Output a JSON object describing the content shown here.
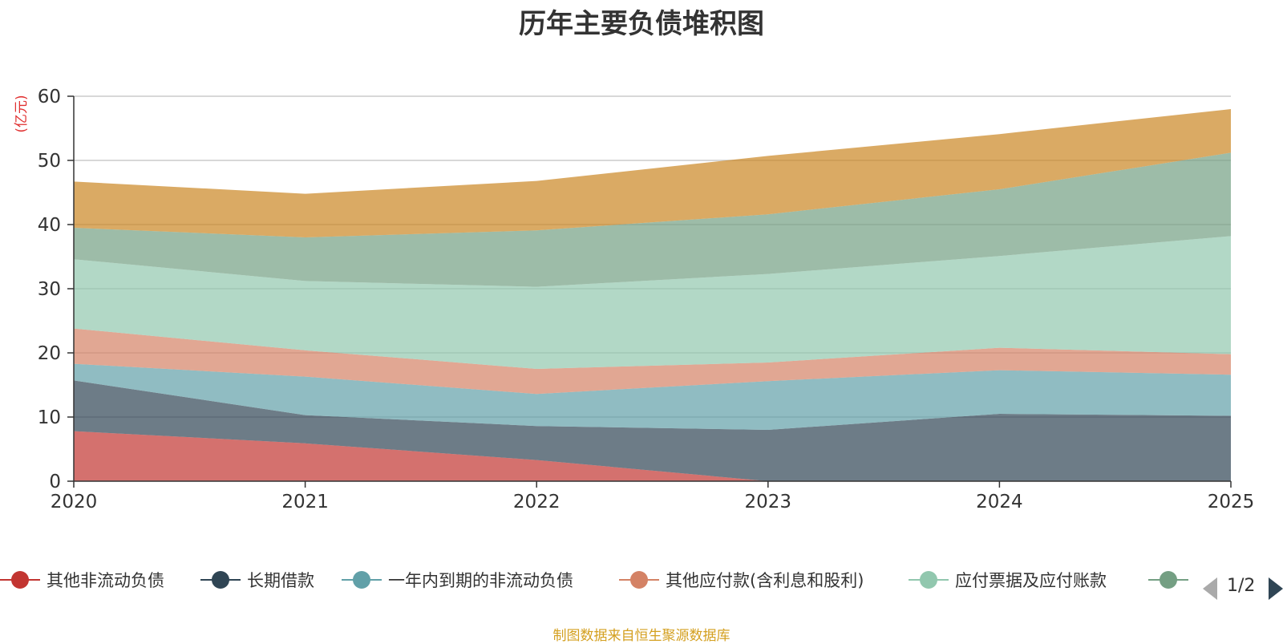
{
  "chart_data": {
    "type": "area",
    "stacked": true,
    "title": "历年主要负债堆积图",
    "ylabel": "(亿元)",
    "xlabel": "",
    "x": [
      "2020",
      "2021",
      "2022",
      "2023",
      "2024",
      "2025"
    ],
    "ylim": [
      0,
      60
    ],
    "yticks": [
      0,
      10,
      20,
      30,
      40,
      50,
      60
    ],
    "grid": true,
    "series": [
      {
        "name": "其他非流动负债",
        "values": [
          7.8,
          5.9,
          3.3,
          0,
          0,
          0
        ],
        "color": "#c23531"
      },
      {
        "name": "长期借款",
        "values": [
          7.9,
          4.4,
          5.3,
          8.0,
          10.5,
          10.2
        ],
        "color": "#2f4554"
      },
      {
        "name": "一年内到期的非流动负债",
        "values": [
          2.6,
          6.0,
          5.0,
          7.6,
          6.8,
          6.4
        ],
        "color": "#61a0a8"
      },
      {
        "name": "其他应付款(含利息和股利)",
        "values": [
          5.5,
          4.1,
          3.9,
          2.9,
          3.5,
          3.2
        ],
        "color": "#d48265"
      },
      {
        "name": "应付票据及应付账款",
        "values": [
          10.8,
          10.8,
          12.8,
          13.8,
          14.3,
          18.4
        ],
        "color": "#91c7ae"
      },
      {
        "name": "",
        "values": [
          4.9,
          6.8,
          8.8,
          9.3,
          10.4,
          13.0
        ],
        "color": "#749f83"
      },
      {
        "name": "",
        "values": [
          7.2,
          6.8,
          7.7,
          9.1,
          8.6,
          6.8
        ],
        "color": "#ca8622"
      }
    ]
  },
  "legend": {
    "visible_count": 6,
    "page": "1/2"
  },
  "source_note": "制图数据来自恒生聚源数据库"
}
